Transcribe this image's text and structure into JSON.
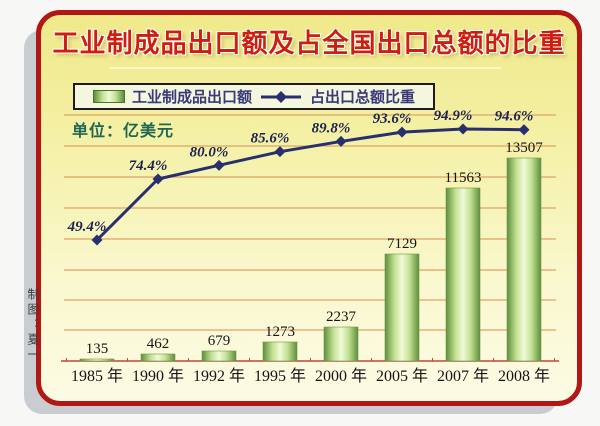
{
  "page": {
    "title": "工业制成品出口额及占全国出口总额的比重",
    "unit_label": "单位：亿美元",
    "credit": "制图：夏一"
  },
  "legend": {
    "bar_label": "工业制成品出口额",
    "line_label": "占出口总额比重"
  },
  "colors": {
    "panel_border_red": "#b01715",
    "panel_background_yellow": "#f2ee9a",
    "title_red": "#cd1f10",
    "bar_green_dark": "#5d8f3c",
    "bar_green_light": "#f0fad8",
    "line_navy": "#272f6e",
    "gridline_tan": "#e0a466",
    "baseline_red": "#c0483c",
    "unit_text_green": "#1f6653",
    "legend_text_navy": "#39397c"
  },
  "chart_data": {
    "type": "bar",
    "combo": "bar + line",
    "title": "工业制成品出口额及占全国出口总额的比重",
    "categories": [
      "1985 年",
      "1990 年",
      "1992 年",
      "1995 年",
      "2000 年",
      "2005 年",
      "2007 年",
      "2008 年"
    ],
    "series": [
      {
        "name": "工业制成品出口额",
        "type": "bar",
        "unit": "亿美元",
        "values": [
          135,
          462,
          679,
          1273,
          2237,
          7129,
          11563,
          13507
        ],
        "labels": [
          "135",
          "462",
          "679",
          "1273",
          "2237",
          "7129",
          "11563",
          "13507"
        ]
      },
      {
        "name": "占出口总额比重",
        "type": "line",
        "unit": "%",
        "values": [
          49.4,
          74.4,
          80.0,
          85.6,
          89.8,
          93.6,
          94.9,
          94.6
        ],
        "labels": [
          "49.4%",
          "74.4%",
          "80.0%",
          "85.6%",
          "89.8%",
          "93.6%",
          "94.9%",
          "94.6%"
        ]
      }
    ],
    "xlabel": "",
    "ylabel": "",
    "y_axis_tick_labels_visible": false,
    "bar_axis_range_estimate": [
      0,
      16000
    ],
    "line_axis_range_estimate": [
      45,
      100
    ],
    "grid": true,
    "legend_position": "top-center"
  }
}
